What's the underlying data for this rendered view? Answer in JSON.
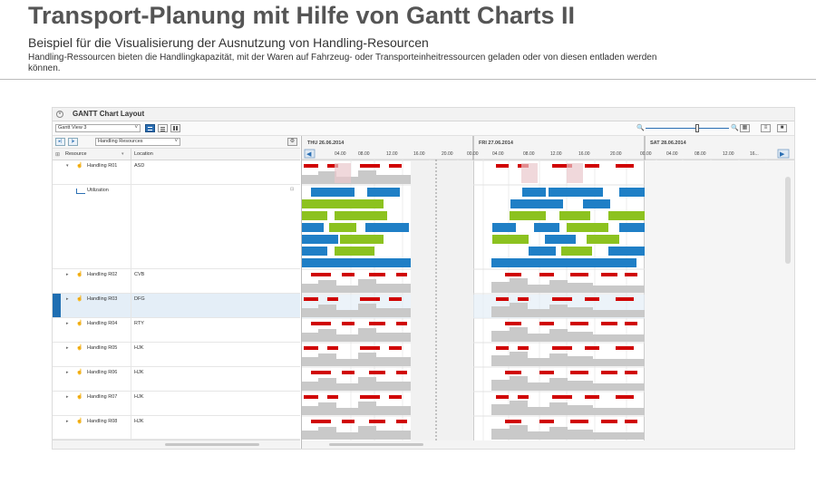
{
  "slide": {
    "title": "Transport-Planung mit Hilfe von Gantt Charts II",
    "subtitle": "Beispiel für die Visualisierung der Ausnutzung von Handling-Resourcen",
    "description": "Handling-Ressourcen bieten die Handlingkapazität, mit der Waren auf Fahrzeug- oder Transporteinheitressourcen geladen oder von diesen entladen werden können."
  },
  "panel": {
    "title": "GANTT Chart Layout",
    "collapse_icon": "collapse-circle-icon"
  },
  "toolbar": {
    "view_select": "Gantt View 3",
    "resource_select": "Handling Resources",
    "view_buttons": [
      "layout-top-bottom-icon",
      "layout-rows-icon",
      "layout-columns-icon"
    ],
    "zoom_minus": "zoom-out-icon",
    "zoom_plus": "zoom-in-icon",
    "zoom_level": 0.6,
    "right_buttons": [
      "calendar-icon",
      "list-icon",
      "fullscreen-icon"
    ]
  },
  "grid": {
    "columns": {
      "resource": "Resource",
      "location": "Location"
    },
    "utilization_label": "Utilization",
    "rows": [
      {
        "name": "Handling R01",
        "location": "ASD",
        "expanded": true,
        "selected": false
      },
      {
        "name": "Handling R02",
        "location": "CVB",
        "expanded": false,
        "selected": false
      },
      {
        "name": "Handling R03",
        "location": "DFG",
        "expanded": false,
        "selected": true
      },
      {
        "name": "Handling R04",
        "location": "RTY",
        "expanded": false,
        "selected": false
      },
      {
        "name": "Handling R05",
        "location": "HJK",
        "expanded": false,
        "selected": false
      },
      {
        "name": "Handling R06",
        "location": "HJK",
        "expanded": false,
        "selected": false
      },
      {
        "name": "Handling R07",
        "location": "HJK",
        "expanded": false,
        "selected": false
      },
      {
        "name": "Handling R08",
        "location": "HJK",
        "expanded": false,
        "selected": false
      }
    ]
  },
  "timeline": {
    "days": [
      "THU 26.06.2014",
      "FRI 27.06.2014",
      "SAT 28.06.2014"
    ],
    "hour_labels": [
      [
        "04.00",
        "08.00",
        "12.00",
        "16.00",
        "20.00"
      ],
      [
        "00.00",
        "04.00",
        "08.00",
        "12.00",
        "16.00",
        "20.00"
      ],
      [
        "00.00",
        "04.00",
        "08.00",
        "12.00",
        "16..."
      ]
    ]
  },
  "colors": {
    "blue": "#1f7fc6",
    "green": "#8cc21f",
    "red": "#d00000",
    "gray_fill": "#c9c9c9",
    "highlight": "#e9c8cc",
    "selected_row": "#e4eef7",
    "accent": "#1f6fb2"
  }
}
